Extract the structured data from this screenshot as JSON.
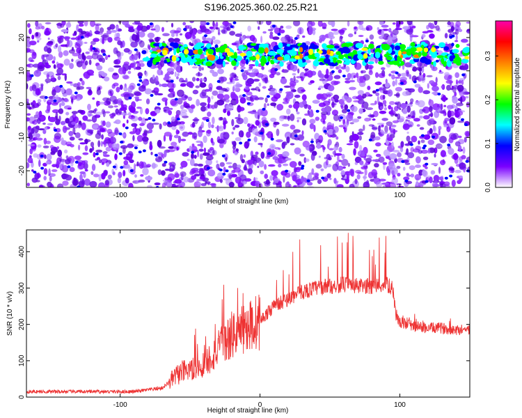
{
  "title": "S196.2025.360.02.25.R21",
  "chart_data": [
    {
      "type": "heatmap",
      "xlabel": "Height of straight line (km)",
      "ylabel": "Frequency (Hz)",
      "xlim": [
        -167,
        150
      ],
      "ylim": [
        -25,
        25
      ],
      "xticks": [
        -100,
        0,
        100
      ],
      "xtick_labels": [
        "-100",
        "0",
        "100"
      ],
      "yticks": [
        -20,
        -10,
        0,
        10,
        20
      ],
      "ytick_labels": [
        "-20",
        "-10",
        "0",
        "10",
        "20"
      ],
      "band": {
        "frequency_hz": 15,
        "x_start_km": -83,
        "x_end_km": 150
      },
      "colorbar": {
        "label": "Normalized spectral amplitude",
        "range": [
          0.0,
          0.38
        ],
        "ticks": [
          0.0,
          0.1,
          0.2,
          0.3
        ],
        "tick_labels": [
          "0.0",
          "0.1",
          "0.2",
          "0.3"
        ],
        "colors": [
          "#ffffff",
          "#7a00ff",
          "#0000ff",
          "#00ffff",
          "#00ff00",
          "#ffff00",
          "#ff8000",
          "#ff0000",
          "#ff00aa"
        ]
      }
    },
    {
      "type": "line",
      "xlabel": "Height of straight line (km)",
      "ylabel": "SNR (10 * v/v)",
      "xlim": [
        -167,
        150
      ],
      "ylim": [
        0,
        460
      ],
      "xticks": [
        -100,
        0,
        100
      ],
      "xtick_labels": [
        "-100",
        "0",
        "100"
      ],
      "yticks": [
        0,
        100,
        200,
        300,
        400
      ],
      "ytick_labels": [
        "0",
        "100",
        "200",
        "300",
        "400"
      ],
      "color": "#ee3333",
      "series": [
        {
          "name": "SNR",
          "x": [
            -167,
            -150,
            -130,
            -110,
            -90,
            -80,
            -70,
            -65,
            -60,
            -55,
            -50,
            -45,
            -40,
            -35,
            -30,
            -25,
            -20,
            -15,
            -10,
            -5,
            0,
            5,
            10,
            15,
            20,
            25,
            30,
            40,
            50,
            60,
            70,
            80,
            90,
            95,
            97,
            100,
            110,
            120,
            130,
            140,
            150
          ],
          "values": [
            15,
            15,
            15,
            15,
            15,
            20,
            25,
            40,
            60,
            70,
            70,
            80,
            90,
            110,
            130,
            150,
            170,
            180,
            190,
            200,
            210,
            230,
            250,
            260,
            270,
            280,
            290,
            300,
            305,
            310,
            305,
            305,
            310,
            300,
            230,
            205,
            195,
            190,
            190,
            185,
            185
          ]
        }
      ]
    }
  ]
}
